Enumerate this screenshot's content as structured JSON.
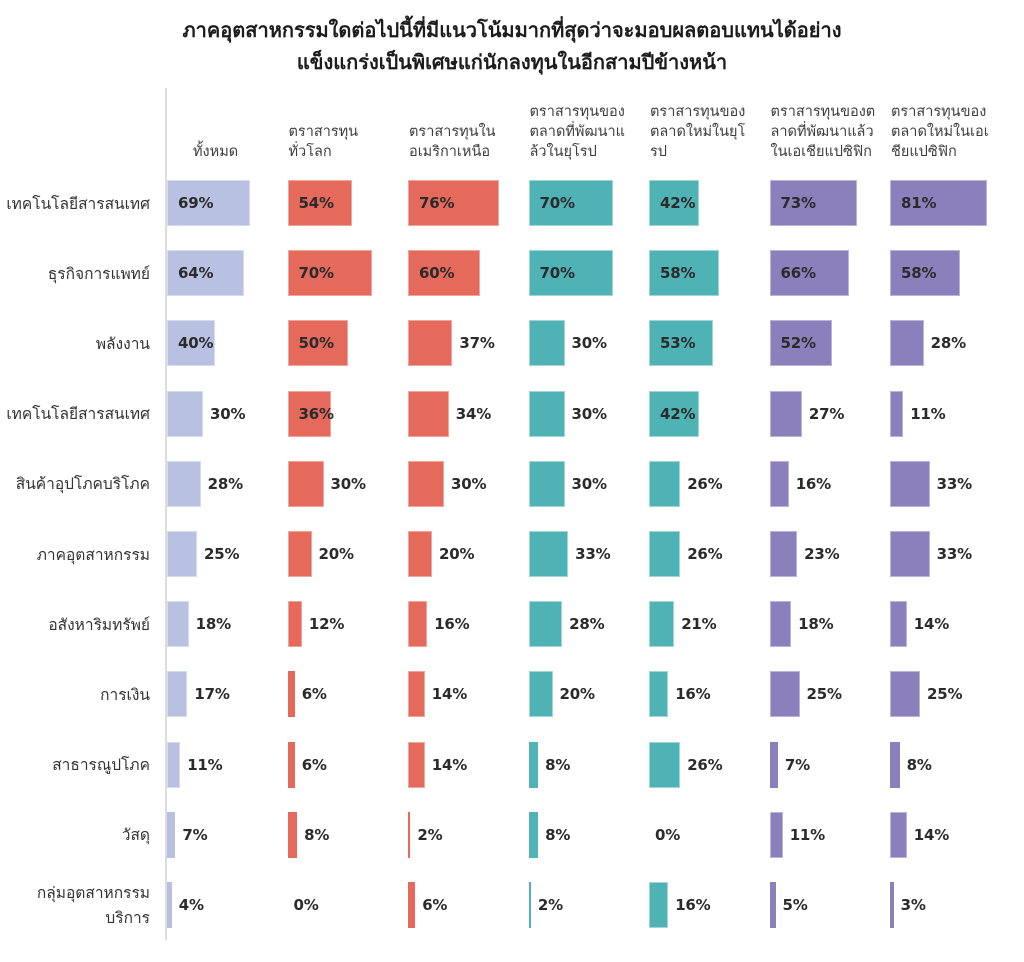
{
  "title": {
    "text": "ภาคอุตสาหกรรมใดต่อไปนี้ที่มีแนวโน้มมากที่สุดว่าจะมอบผลตอบแทนได้อย่าง\nแข็งแกร่งเป็นพิเศษแก่นักลงทุนในอีกสามปีข้างหน้า"
  },
  "chart_data": {
    "type": "bar",
    "orientation": "horizontal",
    "unit": "%",
    "xlim": [
      0,
      100
    ],
    "grid": false,
    "value_labels": true,
    "axis_line_color": "#dcdcdc",
    "categories": [
      "เทคโนโลยีสารสนเทศ",
      "ธุรกิจการแพทย์",
      "พลังงาน",
      "เทคโนโลยีสารสนเทศ",
      "สินค้าอุปโภคบริโภค",
      "ภาคอุตสาหกรรม",
      "อสังหาริมทรัพย์",
      "การเงิน",
      "สาธารณูปโภค",
      "วัสดุ",
      "กลุ่มอุตสาหกรรมบริการ"
    ],
    "series": [
      {
        "name": "ทั้งหมด",
        "color": "#b9c1e2",
        "border_color": "#d6daee",
        "values": [
          69,
          64,
          40,
          30,
          28,
          25,
          18,
          17,
          11,
          7,
          4
        ],
        "label_inside": [
          1,
          1,
          1,
          0,
          0,
          0,
          0,
          0,
          0,
          0,
          0
        ]
      },
      {
        "name": "ตราสารทุน\nทั่วโลก",
        "color": "#e56a5b",
        "border_color": "#efa79d",
        "values": [
          54,
          70,
          50,
          36,
          30,
          20,
          12,
          6,
          6,
          8,
          0
        ],
        "label_inside": [
          1,
          1,
          1,
          1,
          0,
          0,
          0,
          0,
          0,
          0,
          0
        ]
      },
      {
        "name": "ตราสารทุนใน\nอเมริกาเหนือ",
        "color": "#e56a5b",
        "border_color": "#efa79d",
        "values": [
          76,
          60,
          37,
          34,
          30,
          20,
          16,
          14,
          14,
          2,
          6
        ],
        "label_inside": [
          1,
          1,
          0,
          0,
          0,
          0,
          0,
          0,
          0,
          0,
          0
        ]
      },
      {
        "name": "ตราสารทุนของ\nตลาดที่พัฒนาแ\nล้วในยุโรป",
        "color": "#4fb2b4",
        "border_color": "#a2d6d6",
        "values": [
          70,
          70,
          30,
          30,
          30,
          33,
          28,
          20,
          8,
          8,
          2
        ],
        "label_inside": [
          1,
          1,
          0,
          0,
          0,
          0,
          0,
          0,
          0,
          0,
          0
        ]
      },
      {
        "name": "ตราสารทุนของ\nตลาดใหม่ในยุโ\nรป",
        "color": "#4fb2b4",
        "border_color": "#a2d6d6",
        "values": [
          42,
          58,
          53,
          42,
          26,
          26,
          21,
          16,
          26,
          0,
          16
        ],
        "label_inside": [
          1,
          1,
          1,
          1,
          0,
          0,
          0,
          0,
          0,
          0,
          0
        ]
      },
      {
        "name": "ตราสารทุนของต\nลาดที่พัฒนาแล้ว\nในเอเชียแปซิฟิก",
        "color": "#8b80bb",
        "border_color": "#bcb4d8",
        "values": [
          73,
          66,
          52,
          27,
          16,
          23,
          18,
          25,
          7,
          11,
          5
        ],
        "label_inside": [
          1,
          1,
          1,
          0,
          0,
          0,
          0,
          0,
          0,
          0,
          0
        ]
      },
      {
        "name": "ตราสารทุนของ\nตลาดใหม่ในเอเ\nชียแปซิฟิก",
        "color": "#8b80bb",
        "border_color": "#bcb4d8",
        "values": [
          81,
          58,
          28,
          11,
          33,
          33,
          14,
          25,
          8,
          14,
          3
        ],
        "label_inside": [
          1,
          1,
          0,
          0,
          0,
          0,
          0,
          0,
          0,
          0,
          0
        ]
      }
    ]
  }
}
